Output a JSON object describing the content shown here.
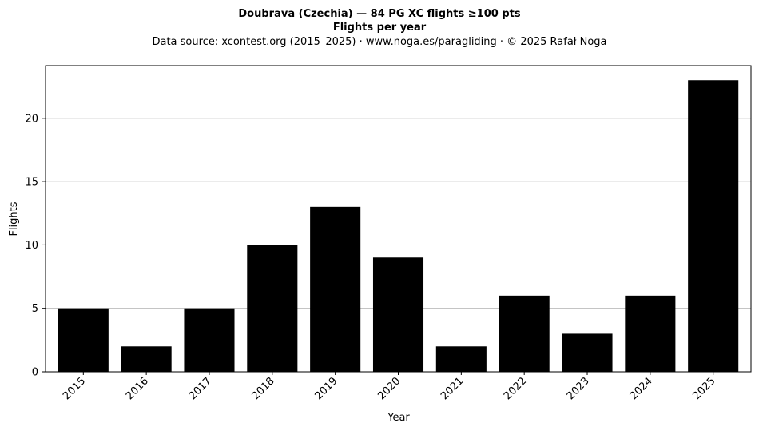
{
  "chart_data": {
    "type": "bar",
    "title": "Doubrava (Czechia)  —  84 PG XC flights ≥100 pts",
    "title_line2": "Flights per year",
    "subtitle": "Data source: xcontest.org (2015–2025)  ·  www.noga.es/paragliding  ·  © 2025 Rafał Noga",
    "xlabel": "Year",
    "ylabel": "Flights",
    "categories": [
      "2015",
      "2016",
      "2017",
      "2018",
      "2019",
      "2020",
      "2021",
      "2022",
      "2023",
      "2024",
      "2025"
    ],
    "values": [
      5,
      2,
      5,
      10,
      13,
      9,
      2,
      6,
      3,
      6,
      23
    ],
    "ylim": [
      0,
      24.15
    ],
    "yticks": [
      0,
      5,
      10,
      15,
      20
    ],
    "grid": "horizontal",
    "bar_color": "#000000",
    "grid_color": "#b0b0b0"
  }
}
